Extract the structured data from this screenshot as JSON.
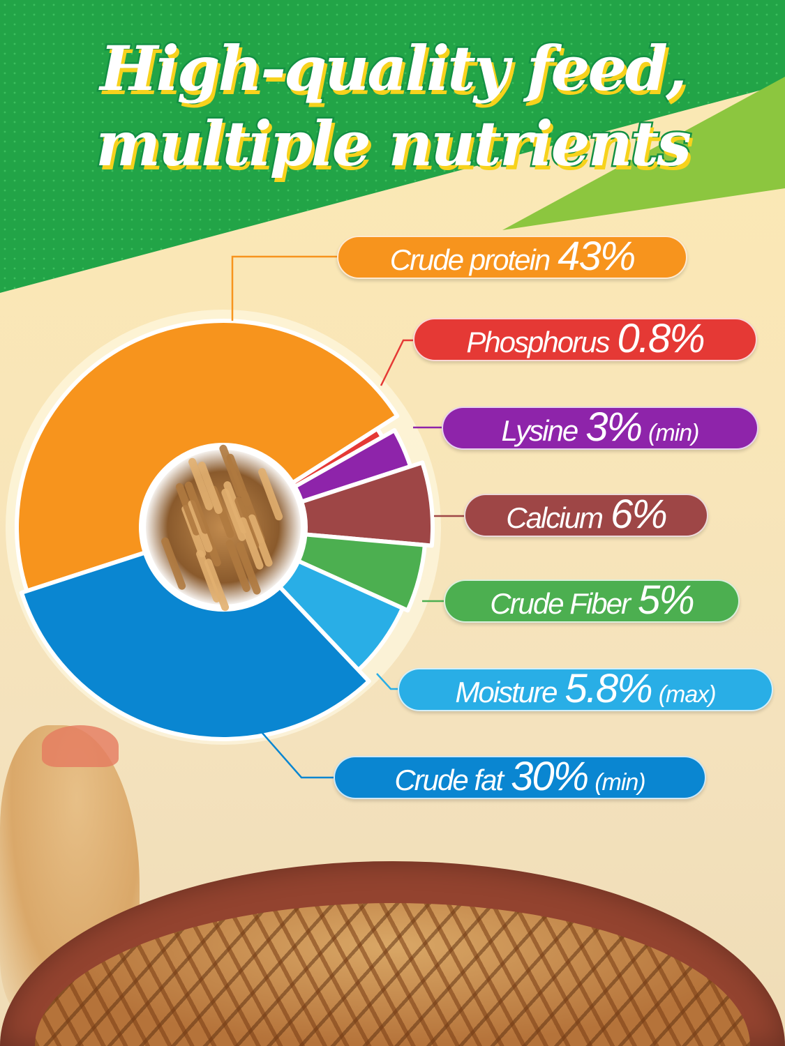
{
  "title": {
    "line1": "High-quality feed,",
    "line2": "multiple nutrients"
  },
  "colors": {
    "green_banner": "#22a447",
    "lime": "#8cc63f",
    "title_stroke": "#139043",
    "title_shadow": "#f7d21c"
  },
  "chart_data": {
    "type": "pie",
    "style": "donut",
    "center_image": "dried mealworms",
    "categories": [
      "Crude protein",
      "Phosphorus",
      "Lysine",
      "Calcium",
      "Crude Fiber",
      "Moisture",
      "Crude fat"
    ],
    "values": [
      43,
      0.8,
      3,
      6,
      5,
      5.8,
      30
    ],
    "labels": [
      {
        "name": "Crude protein",
        "value": "43%",
        "qualifier": ""
      },
      {
        "name": "Phosphorus",
        "value": "0.8%",
        "qualifier": ""
      },
      {
        "name": "Lysine",
        "value": "3%",
        "qualifier": "(min)"
      },
      {
        "name": "Calcium",
        "value": "6%",
        "qualifier": ""
      },
      {
        "name": "Crude Fiber",
        "value": "5%",
        "qualifier": ""
      },
      {
        "name": "Moisture",
        "value": "5.8%",
        "qualifier": "(max)"
      },
      {
        "name": "Crude fat",
        "value": "30%",
        "qualifier": "(min)"
      }
    ],
    "colors": [
      "#f7941d",
      "#e53935",
      "#8e24aa",
      "#9e4646",
      "#4caf50",
      "#29aee6",
      "#0a86d1"
    ],
    "legend": "right"
  }
}
